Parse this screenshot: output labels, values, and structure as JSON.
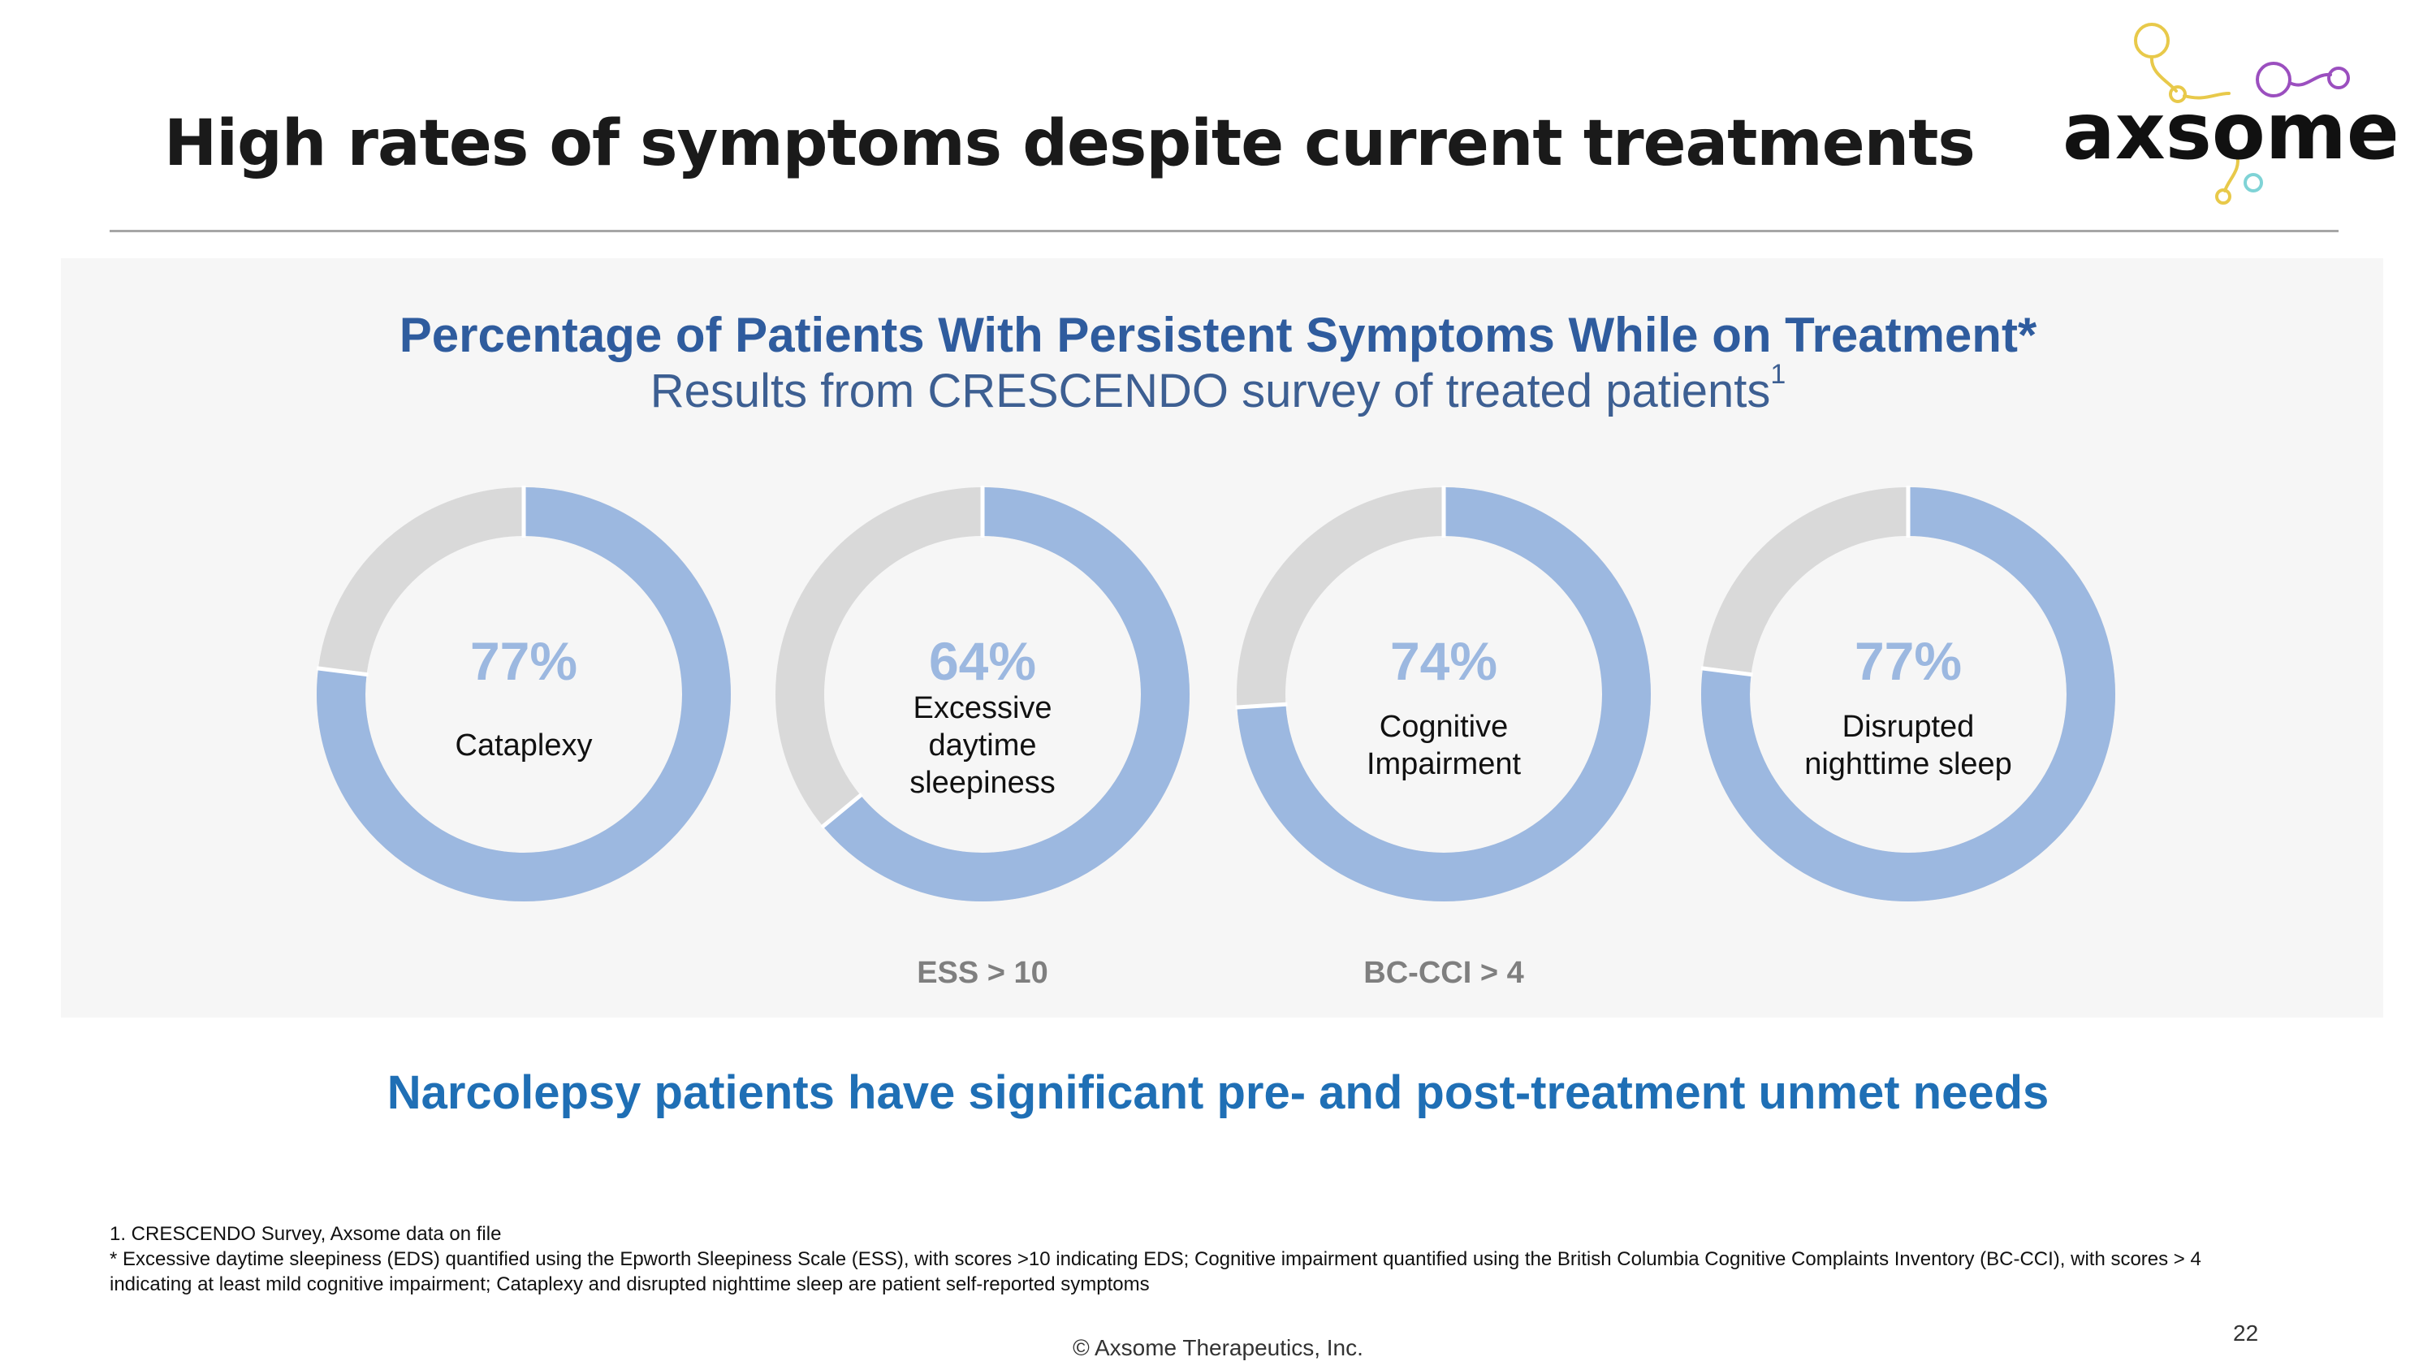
{
  "slide": {
    "title": "High rates of symptoms despite current treatments",
    "logo_text": "axsome",
    "takeaway": "Narcolepsy patients have significant pre- and post-treatment unmet needs",
    "footnotes": [
      "1. CRESCENDO Survey, Axsome data on file",
      "* Excessive daytime sleepiness (EDS) quantified using the Epworth Sleepiness Scale (ESS), with scores >10 indicating EDS; Cognitive impairment quantified using the British Columbia Cognitive Complaints Inventory (BC-CCI), with scores > 4",
      "indicating at least mild cognitive impairment; Cataplexy and disrupted nighttime sleep are patient self-reported symptoms"
    ],
    "copyright": "© Axsome Therapeutics, Inc.",
    "page_number": "22"
  },
  "chart_data": {
    "type": "pie",
    "variant": "donut",
    "title": "Percentage of Patients With Persistent Symptoms While on Treatment*",
    "subtitle": "Results from CRESCENDO survey of treated patients",
    "subtitle_superscript": "1",
    "series": [
      {
        "name": "Cataplexy",
        "label_lines": [
          "Cataplexy"
        ],
        "value": 77,
        "display": "77%",
        "note": ""
      },
      {
        "name": "Excessive daytime sleepiness",
        "label_lines": [
          "Excessive",
          "daytime",
          "sleepiness"
        ],
        "value": 64,
        "display": "64%",
        "note": "ESS > 10"
      },
      {
        "name": "Cognitive Impairment",
        "label_lines": [
          "Cognitive",
          "Impairment"
        ],
        "value": 74,
        "display": "74%",
        "note": "BC-CCI > 4"
      },
      {
        "name": "Disrupted nighttime sleep",
        "label_lines": [
          "Disrupted",
          "nighttime sleep"
        ],
        "value": 77,
        "display": "77%",
        "note": ""
      }
    ],
    "colors": {
      "value": "#9cb8e0",
      "remainder": "#d9d9d9",
      "divider": "#ffffff"
    }
  }
}
